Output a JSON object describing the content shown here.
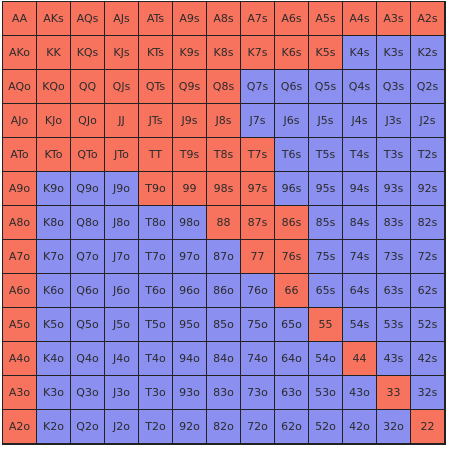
{
  "colors": {
    "range": "#f7735e",
    "fold": "#8a8ff0"
  },
  "rows": [
    [
      "AA",
      "AKs",
      "AQs",
      "AJs",
      "ATs",
      "A9s",
      "A8s",
      "A7s",
      "A6s",
      "A5s",
      "A4s",
      "A3s",
      "A2s"
    ],
    [
      "AKo",
      "KK",
      "KQs",
      "KJs",
      "KTs",
      "K9s",
      "K8s",
      "K7s",
      "K6s",
      "K5s",
      "K4s",
      "K3s",
      "K2s"
    ],
    [
      "AQo",
      "KQo",
      "QQ",
      "QJs",
      "QTs",
      "Q9s",
      "Q8s",
      "Q7s",
      "Q6s",
      "Q5s",
      "Q4s",
      "Q3s",
      "Q2s"
    ],
    [
      "AJo",
      "KJo",
      "QJo",
      "JJ",
      "JTs",
      "J9s",
      "J8s",
      "J7s",
      "J6s",
      "J5s",
      "J4s",
      "J3s",
      "J2s"
    ],
    [
      "ATo",
      "KTo",
      "QTo",
      "JTo",
      "TT",
      "T9s",
      "T8s",
      "T7s",
      "T6s",
      "T5s",
      "T4s",
      "T3s",
      "T2s"
    ],
    [
      "A9o",
      "K9o",
      "Q9o",
      "J9o",
      "T9o",
      "99",
      "98s",
      "97s",
      "96s",
      "95s",
      "94s",
      "93s",
      "92s"
    ],
    [
      "A8o",
      "K8o",
      "Q8o",
      "J8o",
      "T8o",
      "98o",
      "88",
      "87s",
      "86s",
      "85s",
      "84s",
      "83s",
      "82s"
    ],
    [
      "A7o",
      "K7o",
      "Q7o",
      "J7o",
      "T7o",
      "97o",
      "87o",
      "77",
      "76s",
      "75s",
      "74s",
      "73s",
      "72s"
    ],
    [
      "A6o",
      "K6o",
      "Q6o",
      "J6o",
      "T6o",
      "96o",
      "86o",
      "76o",
      "66",
      "65s",
      "64s",
      "63s",
      "62s"
    ],
    [
      "A5o",
      "K5o",
      "Q5o",
      "J5o",
      "T5o",
      "95o",
      "85o",
      "75o",
      "65o",
      "55",
      "54s",
      "53s",
      "52s"
    ],
    [
      "A4o",
      "K4o",
      "Q4o",
      "J4o",
      "T4o",
      "94o",
      "84o",
      "74o",
      "64o",
      "54o",
      "44",
      "43s",
      "42s"
    ],
    [
      "A3o",
      "K3o",
      "Q3o",
      "J3o",
      "T3o",
      "93o",
      "83o",
      "73o",
      "63o",
      "53o",
      "43o",
      "33",
      "32s"
    ],
    [
      "A2o",
      "K2o",
      "Q2o",
      "J2o",
      "T2o",
      "92o",
      "82o",
      "72o",
      "62o",
      "52o",
      "42o",
      "32o",
      "22"
    ]
  ],
  "highlight": [
    "RRRRRRRRRRRRR",
    "RRRRRRRRRRBBB",
    "RRRRRRRBBBBBB",
    "RRRRRRRBBBBBB",
    "RRRRRRRRBBBBB",
    "RBBBRRRRBBBBB",
    "RBBBBBRRRBBBB",
    "RBBBBBBRRBBBB",
    "RBBBBBBBRBBBB",
    "RBBBBBBBBRBBB",
    "RBBBBBBBBBRBB",
    "RBBBBBBBBBBRB",
    "RBBBBBBBBBBBR"
  ]
}
